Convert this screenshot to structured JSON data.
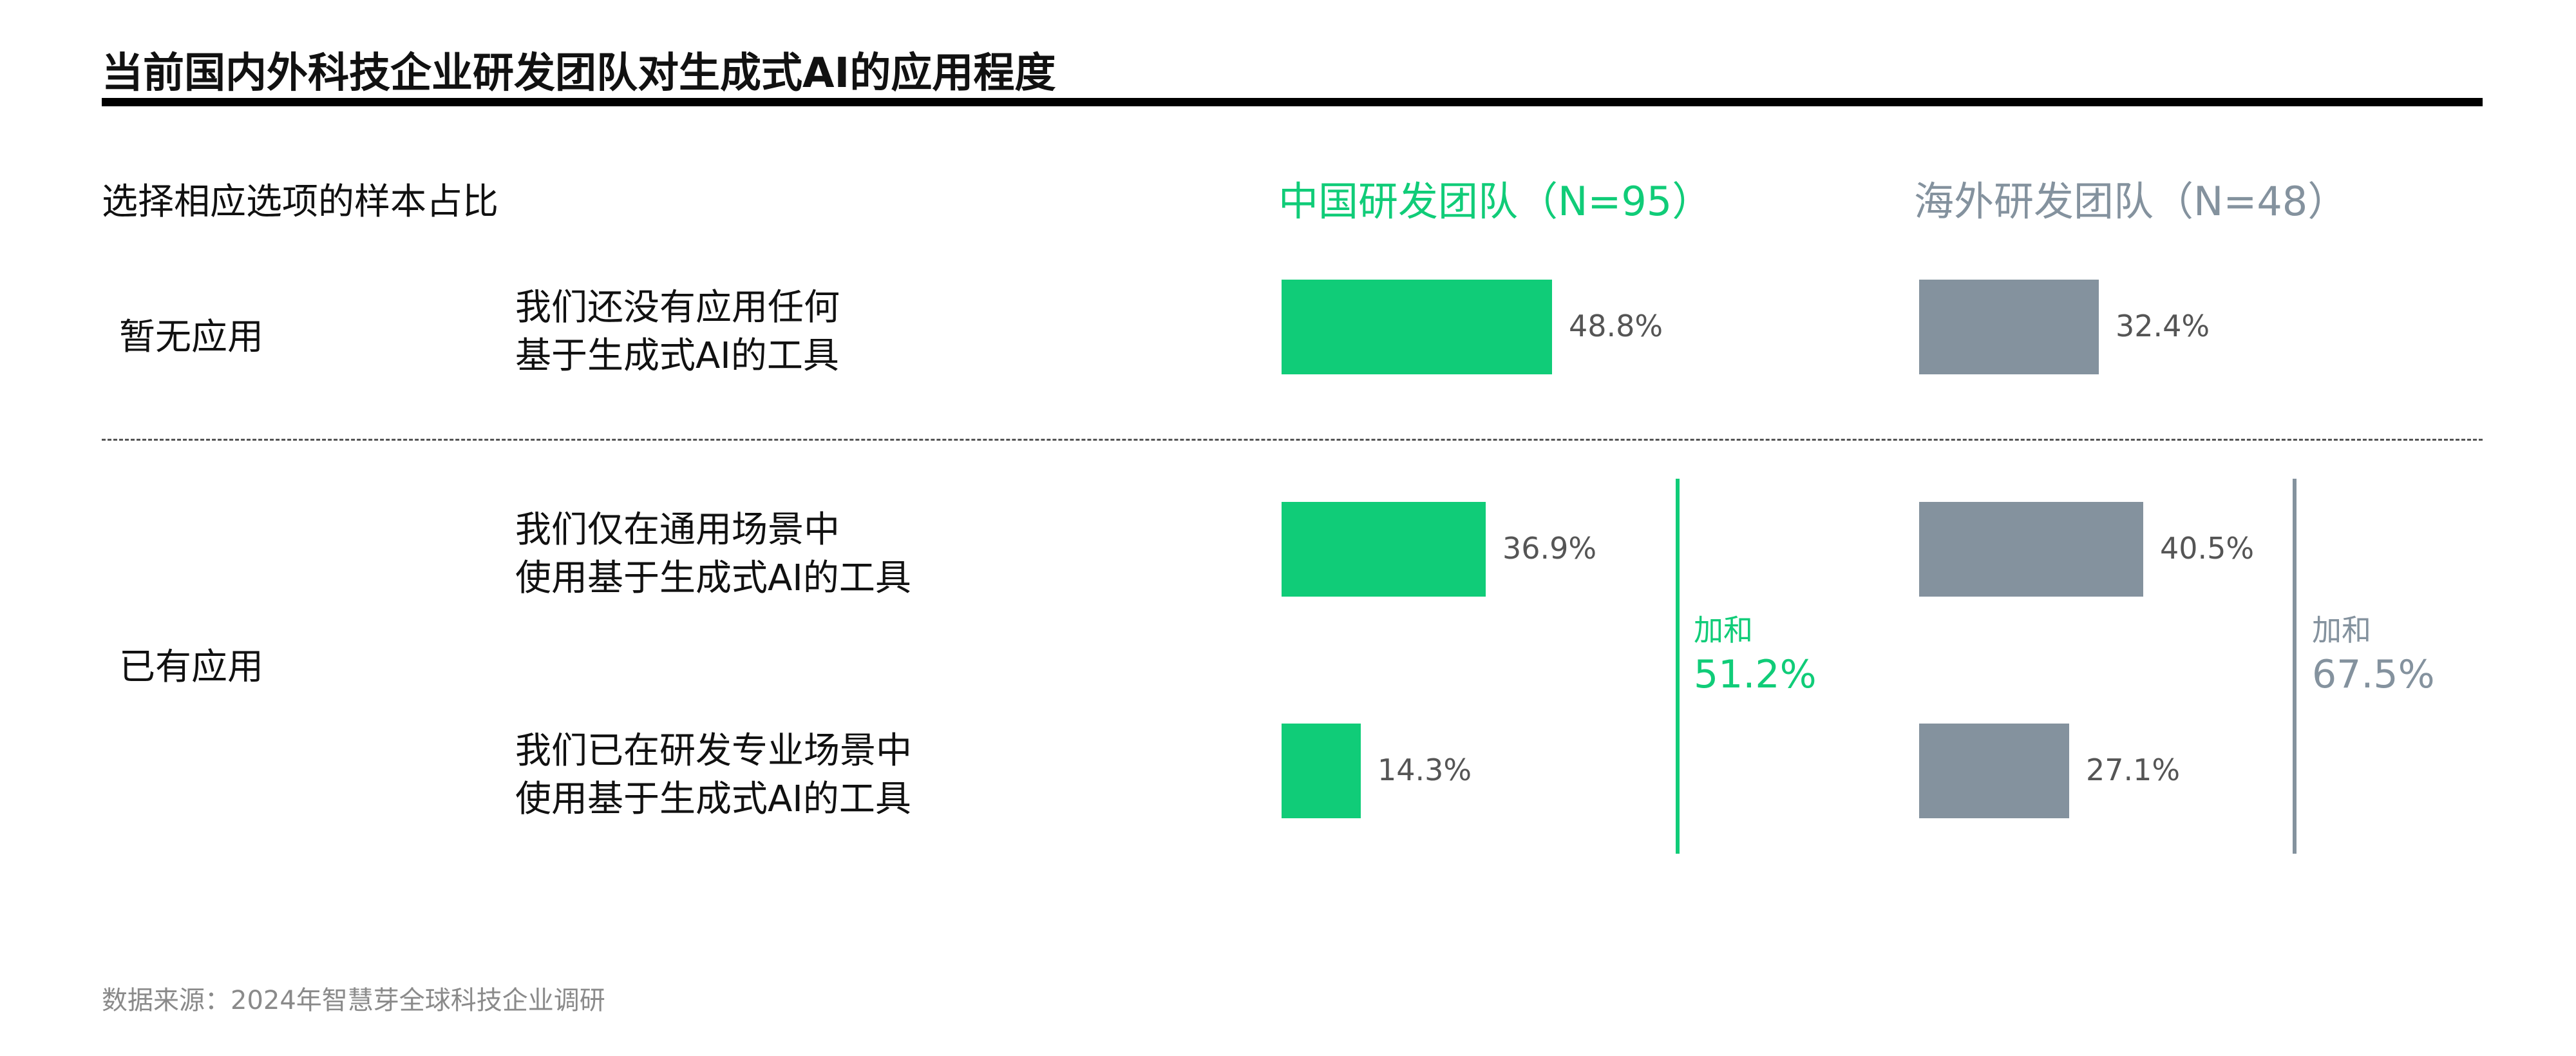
{
  "title": "当前国内外科技企业研发团队对生成式AI的应用程度",
  "subtitle": "选择相应选项的样本占比",
  "source": "数据来源：2024年智慧芽全球科技企业调研",
  "colors": {
    "china": "#10CC78",
    "overseas": "#84929E"
  },
  "groups": [
    {
      "label": "暂无应用"
    },
    {
      "label": "已有应用"
    }
  ],
  "sums": [
    {
      "label": "加和",
      "value": 51.2,
      "value_text": "51.2%"
    },
    {
      "label": "加和",
      "value": 67.5,
      "value_text": "67.5%"
    }
  ],
  "chart_data": {
    "type": "bar",
    "title": "当前国内外科技企业研发团队对生成式AI的应用程度",
    "categories": [
      [
        "我们还没有应用任何",
        "基于生成式AI的工具"
      ],
      [
        "我们仅在通用场景中",
        "使用基于生成式AI的工具"
      ],
      [
        "我们已在研发专业场景中",
        "使用基于生成式AI的工具"
      ]
    ],
    "series": [
      {
        "name": "中国研发团队（N=95）",
        "values": [
          48.8,
          36.9,
          14.3
        ],
        "labels": [
          "48.8%",
          "36.9%",
          "14.3%"
        ]
      },
      {
        "name": "海外研发团队（N=48）",
        "values": [
          32.4,
          40.5,
          27.1
        ],
        "labels": [
          "32.4%",
          "40.5%",
          "27.1%"
        ]
      }
    ],
    "unit": "%",
    "grid": false
  }
}
